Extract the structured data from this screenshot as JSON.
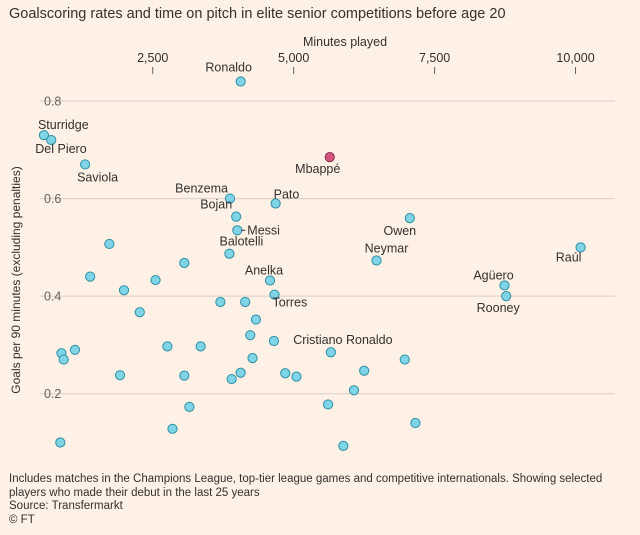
{
  "title": "Goalscoring rates and time on pitch in elite senior competitions before age 20",
  "footnote": "Includes matches in the Champions League, top-tier league games and competitive internationals. Showing selected players who made their debut in the last 25 years",
  "source": "Source:   Transfermarkt",
  "credit": "© FT",
  "colors": {
    "background": "#fff1e5",
    "point": "#7fd4e6",
    "point_stroke": "#2f8ea3",
    "highlight": "#d6527e",
    "highlight_stroke": "#8a2f52",
    "grid": "#d9cfc6"
  },
  "chart_data": {
    "type": "scatter",
    "xlabel": "Minutes played",
    "ylabel": "Goals per 90 minutes (excluding penalties)",
    "x_ticks": [
      2500,
      5000,
      7500,
      10000
    ],
    "x_tick_labels": [
      "2,500",
      "5,000",
      "7,500",
      "10,000"
    ],
    "y_ticks": [
      0.2,
      0.4,
      0.6,
      0.8
    ],
    "y_tick_labels": [
      "0.2",
      "0.4",
      "0.6",
      "0.8"
    ],
    "xlim": [
      500,
      10700
    ],
    "ylim": [
      0.06,
      0.88
    ],
    "x_axis_position": "top",
    "grid": "horizontal",
    "points": [
      {
        "x": 4060,
        "y": 0.84,
        "label": "Ronaldo"
      },
      {
        "x": 570,
        "y": 0.73,
        "label": "Sturridge"
      },
      {
        "x": 700,
        "y": 0.72,
        "label": "Del Piero"
      },
      {
        "x": 1300,
        "y": 0.67,
        "label": "Saviola"
      },
      {
        "x": 5640,
        "y": 0.685,
        "label": "Mbappé",
        "highlight": true
      },
      {
        "x": 3870,
        "y": 0.6,
        "label": "Benzema"
      },
      {
        "x": 4680,
        "y": 0.59,
        "label": "Pato"
      },
      {
        "x": 3980,
        "y": 0.563,
        "label": "Bojan"
      },
      {
        "x": 4000,
        "y": 0.535,
        "label": "Messi"
      },
      {
        "x": 7060,
        "y": 0.56,
        "label": "Owen"
      },
      {
        "x": 3860,
        "y": 0.487,
        "label": "Balotelli"
      },
      {
        "x": 6470,
        "y": 0.473,
        "label": "Neymar"
      },
      {
        "x": 10090,
        "y": 0.5,
        "label": "Raúl"
      },
      {
        "x": 4580,
        "y": 0.432,
        "label": "Anelka"
      },
      {
        "x": 4660,
        "y": 0.403,
        "label": "Torres"
      },
      {
        "x": 8740,
        "y": 0.422,
        "label": "Agüero"
      },
      {
        "x": 8770,
        "y": 0.4,
        "label": "Rooney"
      },
      {
        "x": 5660,
        "y": 0.285,
        "label": "Cristiano Ronaldo"
      },
      {
        "x": 1730,
        "y": 0.507
      },
      {
        "x": 1390,
        "y": 0.44
      },
      {
        "x": 2550,
        "y": 0.433
      },
      {
        "x": 3060,
        "y": 0.468
      },
      {
        "x": 1990,
        "y": 0.412
      },
      {
        "x": 2270,
        "y": 0.367
      },
      {
        "x": 3700,
        "y": 0.388
      },
      {
        "x": 4140,
        "y": 0.388
      },
      {
        "x": 4330,
        "y": 0.352
      },
      {
        "x": 4230,
        "y": 0.32
      },
      {
        "x": 4650,
        "y": 0.308
      },
      {
        "x": 3350,
        "y": 0.297
      },
      {
        "x": 2760,
        "y": 0.297
      },
      {
        "x": 1120,
        "y": 0.29
      },
      {
        "x": 880,
        "y": 0.283
      },
      {
        "x": 920,
        "y": 0.27
      },
      {
        "x": 4270,
        "y": 0.273
      },
      {
        "x": 6970,
        "y": 0.27
      },
      {
        "x": 6250,
        "y": 0.247
      },
      {
        "x": 4060,
        "y": 0.243
      },
      {
        "x": 4850,
        "y": 0.242
      },
      {
        "x": 5050,
        "y": 0.235
      },
      {
        "x": 3900,
        "y": 0.23
      },
      {
        "x": 3060,
        "y": 0.237
      },
      {
        "x": 1920,
        "y": 0.238
      },
      {
        "x": 6070,
        "y": 0.207
      },
      {
        "x": 3150,
        "y": 0.173
      },
      {
        "x": 5610,
        "y": 0.178
      },
      {
        "x": 7160,
        "y": 0.14
      },
      {
        "x": 2850,
        "y": 0.128
      },
      {
        "x": 860,
        "y": 0.1
      },
      {
        "x": 5880,
        "y": 0.093
      }
    ]
  }
}
